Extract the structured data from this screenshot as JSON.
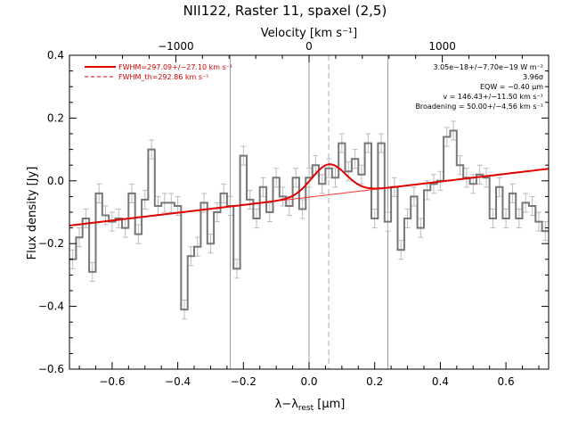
{
  "chart_data": {
    "type": "line",
    "title": "NII122, Raster 11, spaxel (2,5)",
    "xlabel_main": "λ−λ",
    "xlabel_sub": "rest",
    "xlabel_unit": " [μm]",
    "ylabel": "Flux density [Jy]",
    "top_axis_label": "Velocity [km s⁻¹]",
    "xlim": [
      -0.73,
      0.73
    ],
    "ylim": [
      -0.6,
      0.4
    ],
    "x_ticks": [
      -0.6,
      -0.4,
      -0.2,
      0.0,
      0.2,
      0.4,
      0.6
    ],
    "x_tick_labels": [
      "−0.6",
      "−0.4",
      "−0.2",
      "0.0",
      "0.2",
      "0.4",
      "0.6"
    ],
    "y_ticks": [
      -0.6,
      -0.4,
      -0.2,
      0.0,
      0.2,
      0.4
    ],
    "y_tick_labels": [
      "−0.6",
      "−0.4",
      "−0.2",
      "0.0",
      "0.2",
      "0.4"
    ],
    "top_ticks_wavelength": [
      -0.406,
      0.0,
      0.406
    ],
    "top_tick_labels": [
      "−1000",
      "0",
      "1000"
    ],
    "vertical_lines_solid": [
      -0.24,
      0.0,
      0.24
    ],
    "vertical_line_dashed": 0.06,
    "legend": [
      {
        "label": "FWHM=297.09+/−27.10 km s⁻¹",
        "style": "solid"
      },
      {
        "label": "FWHM_th=292.86 km s⁻¹",
        "style": "dashed"
      }
    ],
    "annotations": [
      "3.05e−18+/−7.70e−19 W m⁻²",
      "3.96σ",
      "EQW = −0.40 μm",
      "v = 146.43+/−11.50 km s⁻¹",
      "Broadening = 50.00+/−4.56 km s⁻¹"
    ],
    "baseline": {
      "slope": 0.124,
      "intercept": -0.052
    },
    "gaussian": {
      "center": 0.06,
      "amplitude": 0.097,
      "sigma": 0.052
    },
    "spectrum": {
      "x": [
        -0.72,
        -0.7,
        -0.68,
        -0.66,
        -0.64,
        -0.62,
        -0.6,
        -0.58,
        -0.56,
        -0.54,
        -0.52,
        -0.5,
        -0.48,
        -0.46,
        -0.44,
        -0.42,
        -0.4,
        -0.38,
        -0.36,
        -0.34,
        -0.32,
        -0.3,
        -0.28,
        -0.26,
        -0.24,
        -0.22,
        -0.2,
        -0.18,
        -0.16,
        -0.14,
        -0.12,
        -0.1,
        -0.08,
        -0.06,
        -0.04,
        -0.02,
        0.0,
        0.02,
        0.04,
        0.06,
        0.08,
        0.1,
        0.12,
        0.14,
        0.16,
        0.18,
        0.2,
        0.22,
        0.24,
        0.26,
        0.28,
        0.3,
        0.32,
        0.34,
        0.36,
        0.38,
        0.4,
        0.42,
        0.44,
        0.46,
        0.48,
        0.5,
        0.52,
        0.54,
        0.56,
        0.58,
        0.6,
        0.62,
        0.64,
        0.66,
        0.68,
        0.7,
        0.72
      ],
      "y": [
        -0.25,
        -0.18,
        -0.12,
        -0.29,
        -0.04,
        -0.11,
        -0.13,
        -0.12,
        -0.15,
        -0.04,
        -0.17,
        -0.06,
        0.1,
        -0.08,
        -0.07,
        -0.07,
        -0.08,
        -0.41,
        -0.24,
        -0.21,
        -0.07,
        -0.2,
        -0.1,
        -0.04,
        -0.08,
        -0.28,
        0.08,
        -0.06,
        -0.12,
        -0.02,
        -0.1,
        0.01,
        -0.05,
        -0.08,
        0.01,
        -0.09,
        0.01,
        0.05,
        -0.01,
        0.04,
        0.01,
        0.12,
        0.03,
        0.07,
        0.02,
        0.12,
        -0.12,
        0.12,
        -0.13,
        -0.02,
        -0.22,
        -0.12,
        -0.05,
        -0.15,
        -0.03,
        -0.01,
        0.0,
        0.14,
        0.16,
        0.05,
        0.01,
        -0.01,
        0.02,
        0.01,
        -0.12,
        -0.02,
        -0.12,
        -0.04,
        -0.12,
        -0.07,
        -0.08,
        -0.13,
        -0.16
      ],
      "err": [
        0.03,
        0.03,
        0.03,
        0.03,
        0.03,
        0.03,
        0.03,
        0.03,
        0.03,
        0.03,
        0.03,
        0.03,
        0.03,
        0.03,
        0.03,
        0.03,
        0.03,
        0.03,
        0.03,
        0.03,
        0.03,
        0.03,
        0.03,
        0.03,
        0.03,
        0.03,
        0.03,
        0.03,
        0.03,
        0.03,
        0.03,
        0.03,
        0.03,
        0.03,
        0.03,
        0.03,
        0.03,
        0.03,
        0.03,
        0.03,
        0.03,
        0.03,
        0.03,
        0.03,
        0.03,
        0.03,
        0.03,
        0.03,
        0.03,
        0.03,
        0.03,
        0.03,
        0.03,
        0.03,
        0.03,
        0.03,
        0.03,
        0.03,
        0.03,
        0.03,
        0.03,
        0.03,
        0.03,
        0.03,
        0.03,
        0.03,
        0.03,
        0.03,
        0.03,
        0.03,
        0.03,
        0.03,
        0.03
      ]
    }
  }
}
